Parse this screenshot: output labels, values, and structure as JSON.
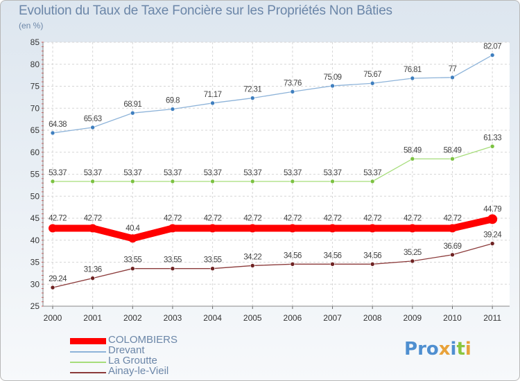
{
  "header": {
    "title": "Evolution du Taux de Taxe Foncière sur les Propriétés Non Bâties",
    "unit": "(en %)"
  },
  "logo": {
    "text": "Proxiti",
    "colors": [
      "#4f8fd0",
      "#4f8fd0",
      "#4f8fd0",
      "#e8a23a",
      "#4f8fd0",
      "#8bc63f",
      "#e8a23a"
    ]
  },
  "chart_data": {
    "type": "line",
    "title": "Evolution du Taux de Taxe Foncière sur les Propriétés Non Bâties",
    "ylabel": "(en %)",
    "x": [
      "2000",
      "2001",
      "2002",
      "2003",
      "2004",
      "2005",
      "2006",
      "2007",
      "2008",
      "2009",
      "2010",
      "2011"
    ],
    "ylim": [
      25,
      85
    ],
    "yticks": [
      25,
      30,
      35,
      40,
      45,
      50,
      55,
      60,
      65,
      70,
      75,
      80,
      85
    ],
    "grid": true,
    "legend_position": "bottom-left",
    "series": [
      {
        "name": "COLOMBIERS",
        "color": "#ff0000",
        "emphasis": true,
        "values": [
          42.72,
          42.72,
          40.4,
          42.72,
          42.72,
          42.72,
          42.72,
          42.72,
          42.72,
          42.72,
          42.72,
          44.79
        ],
        "labels": [
          "42.72",
          "42.72",
          "40.4",
          "42.72",
          "42.72",
          "42.72",
          "42.72",
          "42.72",
          "42.72",
          "42.72",
          "42.72",
          "44.79"
        ]
      },
      {
        "name": "Drevant",
        "color": "#8db3d9",
        "marker_color": "#3f7fbf",
        "values": [
          64.38,
          65.63,
          68.91,
          69.8,
          71.17,
          72.31,
          73.76,
          75.09,
          75.67,
          76.81,
          77,
          82.07
        ],
        "labels": [
          "64.38",
          "65.63",
          "68.91",
          "69.8",
          "71.17",
          "72.31",
          "73.76",
          "75.09",
          "75.67",
          "76.81",
          "77",
          "82.07"
        ]
      },
      {
        "name": "La Groutte",
        "color": "#a6dd7a",
        "marker_color": "#7cc242",
        "values": [
          53.37,
          53.37,
          53.37,
          53.37,
          53.37,
          53.37,
          53.37,
          53.37,
          53.37,
          58.49,
          58.49,
          61.33
        ],
        "labels": [
          "53.37",
          "53.37",
          "53.37",
          "53.37",
          "53.37",
          "53.37",
          "53.37",
          "53.37",
          "53.37",
          "58.49",
          "58.49",
          "61.33"
        ]
      },
      {
        "name": "Ainay-le-Vieil",
        "color": "#8b3a3a",
        "marker_color": "#6e2222",
        "values": [
          29.24,
          31.36,
          33.55,
          33.55,
          33.55,
          34.22,
          34.56,
          34.56,
          34.56,
          35.25,
          36.69,
          39.24
        ],
        "labels": [
          "29.24",
          "31.36",
          "33.55",
          "33.55",
          "33.55",
          "34.22",
          "34.56",
          "34.56",
          "34.56",
          "35.25",
          "36.69",
          "39.24"
        ]
      }
    ]
  }
}
